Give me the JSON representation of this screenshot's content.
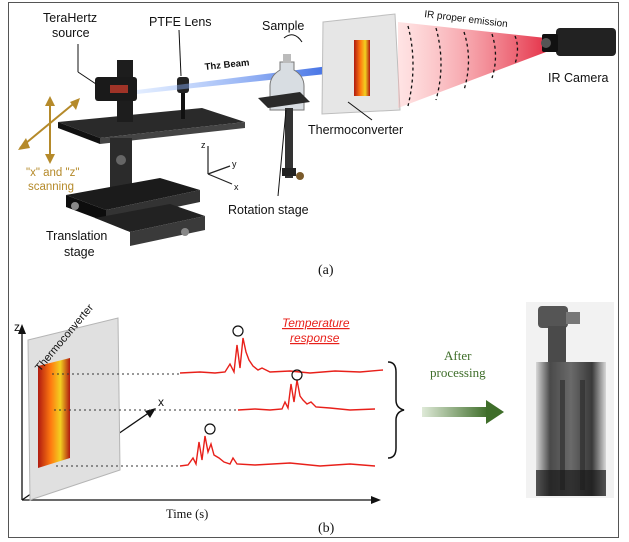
{
  "panel_a": {
    "source_label_1": "TeraHertz",
    "source_label_2": "source",
    "lens_label": "PTFE Lens",
    "beam_label": "Thz Beam",
    "sample_label": "Sample",
    "emission_label": "IR  proper emission",
    "camera_label": "IR Camera",
    "thermoconverter_label": "Thermoconverter",
    "scan_label_1": "\"x\" and \"z\"",
    "scan_label_2": "scanning",
    "rotation_label": "Rotation stage",
    "translation_label_1": "Translation",
    "translation_label_2": "stage",
    "axis_z": "z",
    "axis_y": "y",
    "axis_x": "x",
    "caption": "(a)"
  },
  "panel_b": {
    "axis_z": "z",
    "axis_x": "x",
    "thermoconverter_label": "Thermoconverter",
    "response_label_1": "Temperature",
    "response_label_2": "response",
    "time_label": "Time (s)",
    "after_label_1": "After",
    "after_label_2": "processing",
    "caption": "(b)"
  },
  "colors": {
    "signal_red": "#e8201a",
    "arrow_green": "#3f6e2a",
    "scan_gold": "#b58a2a",
    "beam_blue": "#3d6fe0"
  }
}
